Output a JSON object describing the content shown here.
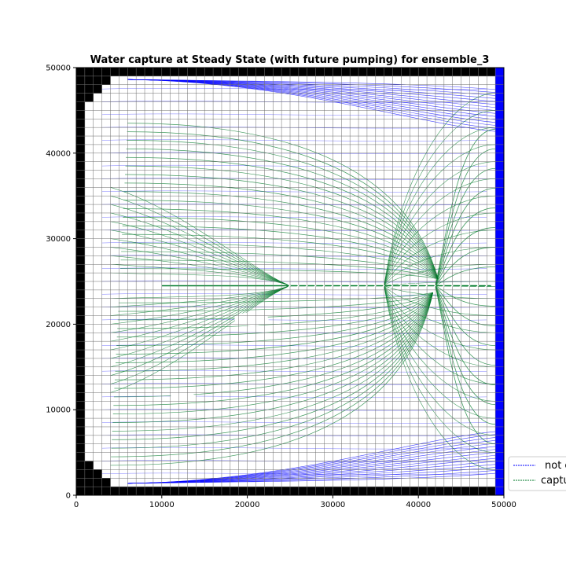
{
  "chart_data": {
    "type": "line",
    "title": "Water capture at Steady State (with future pumping) for ensemble_3",
    "xlabel": "",
    "ylabel": "",
    "xlim": [
      0,
      50000
    ],
    "ylim": [
      0,
      50000
    ],
    "xticks": [
      0,
      10000,
      20000,
      30000,
      40000,
      50000
    ],
    "yticks": [
      0,
      10000,
      20000,
      30000,
      40000,
      50000
    ],
    "xtick_labels": [
      "0",
      "10000",
      "20000",
      "30000",
      "40000",
      "50000"
    ],
    "ytick_labels": [
      "0",
      "10000",
      "20000",
      "30000",
      "40000",
      "50000"
    ],
    "grid": true,
    "grid_cell_size": 1000,
    "series": [
      {
        "name": "not captured",
        "color": "#0000ff"
      },
      {
        "name": "captured",
        "color": "#007a2a"
      }
    ],
    "well_row_y": 24500,
    "well_x": [
      25000,
      26000,
      27000,
      28000,
      29000,
      30000,
      31000,
      32000,
      33000,
      34000,
      35000,
      36000,
      37000,
      38000,
      39000,
      40000,
      41000,
      42000,
      43000,
      44000,
      45000,
      46000,
      47000,
      48000
    ],
    "legend_position": "lower-right",
    "colors": {
      "inactive": "#000000",
      "boundary": "#0000ff",
      "captured": "#007a2a",
      "not_captured": "#0000ff"
    }
  }
}
